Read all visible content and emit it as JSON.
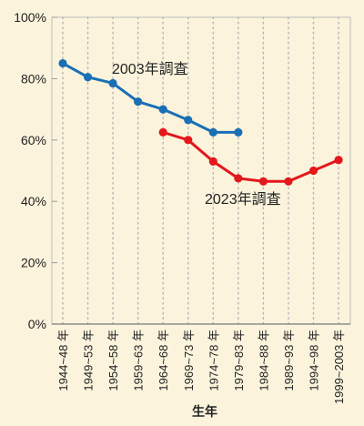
{
  "chart_data": {
    "type": "line",
    "title": "",
    "xlabel": "生年",
    "ylabel": "",
    "ylim": [
      0,
      100
    ],
    "y_ticks": [
      0,
      20,
      40,
      60,
      80,
      100
    ],
    "y_tick_labels": [
      "0%",
      "20%",
      "40%",
      "60%",
      "80%",
      "100%"
    ],
    "grid": "vertical-dotted",
    "categories": [
      "1944~48 年",
      "1949~53 年",
      "1954~58 年",
      "1959~63 年",
      "1964~68 年",
      "1969~73 年",
      "1974~78 年",
      "1979~83 年",
      "1984~88 年",
      "1989~93 年",
      "1994~98 年",
      "1999~2003 年"
    ],
    "series": [
      {
        "name": "2003年調査",
        "color": "#1a6fb5",
        "values": [
          85,
          80.5,
          78.5,
          72.5,
          70,
          66.5,
          62.5,
          62.5,
          null,
          null,
          null,
          null
        ]
      },
      {
        "name": "2023年調査",
        "color": "#e3171c",
        "values": [
          null,
          null,
          null,
          null,
          62.5,
          60,
          53,
          47.5,
          46.5,
          46.5,
          50,
          53.5
        ]
      }
    ]
  }
}
